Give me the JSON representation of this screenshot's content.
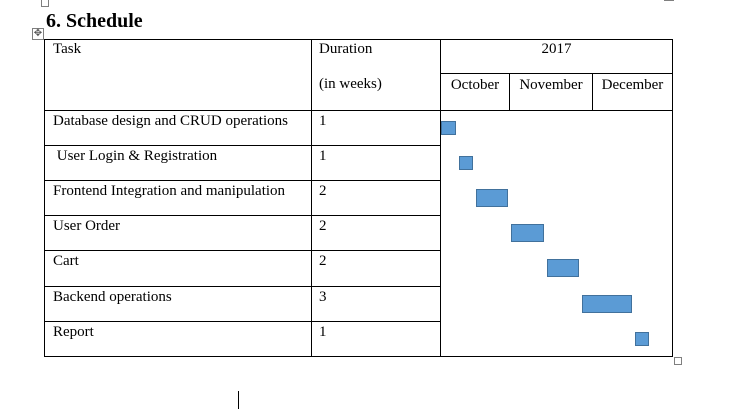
{
  "document": {
    "heading": "6. Schedule"
  },
  "table": {
    "header": {
      "task": "Task",
      "duration_line1": "Duration",
      "duration_line2": "(in weeks)",
      "year": "2017",
      "months": [
        "October",
        "November",
        "December"
      ]
    },
    "rows": [
      {
        "task": "Database design and CRUD operations",
        "duration": "1"
      },
      {
        "task": " User Login & Registration",
        "duration": "1"
      },
      {
        "task": "Frontend Integration and manipulation",
        "duration": "2"
      },
      {
        "task": "User Order",
        "duration": "2"
      },
      {
        "task": "Cart",
        "duration": "2"
      },
      {
        "task": "Backend operations",
        "duration": "3"
      },
      {
        "task": "Report",
        "duration": "1"
      }
    ]
  },
  "gantt": {
    "bar_color": "#5b9bd5",
    "bar_border_color": "#41719c",
    "bars": [
      {
        "task": "Database design and CRUD operations",
        "start_week": 0,
        "weeks": 1
      },
      {
        "task": "User Login & Registration",
        "start_week": 1,
        "weeks": 1
      },
      {
        "task": "Frontend Integration and manipulation",
        "start_week": 2,
        "weeks": 2
      },
      {
        "task": "User Order",
        "start_week": 4,
        "weeks": 2
      },
      {
        "task": "Cart",
        "start_week": 6,
        "weeks": 2
      },
      {
        "task": "Backend operations",
        "start_week": 8,
        "weeks": 3
      },
      {
        "task": "Report",
        "start_week": 11,
        "weeks": 1
      }
    ]
  }
}
